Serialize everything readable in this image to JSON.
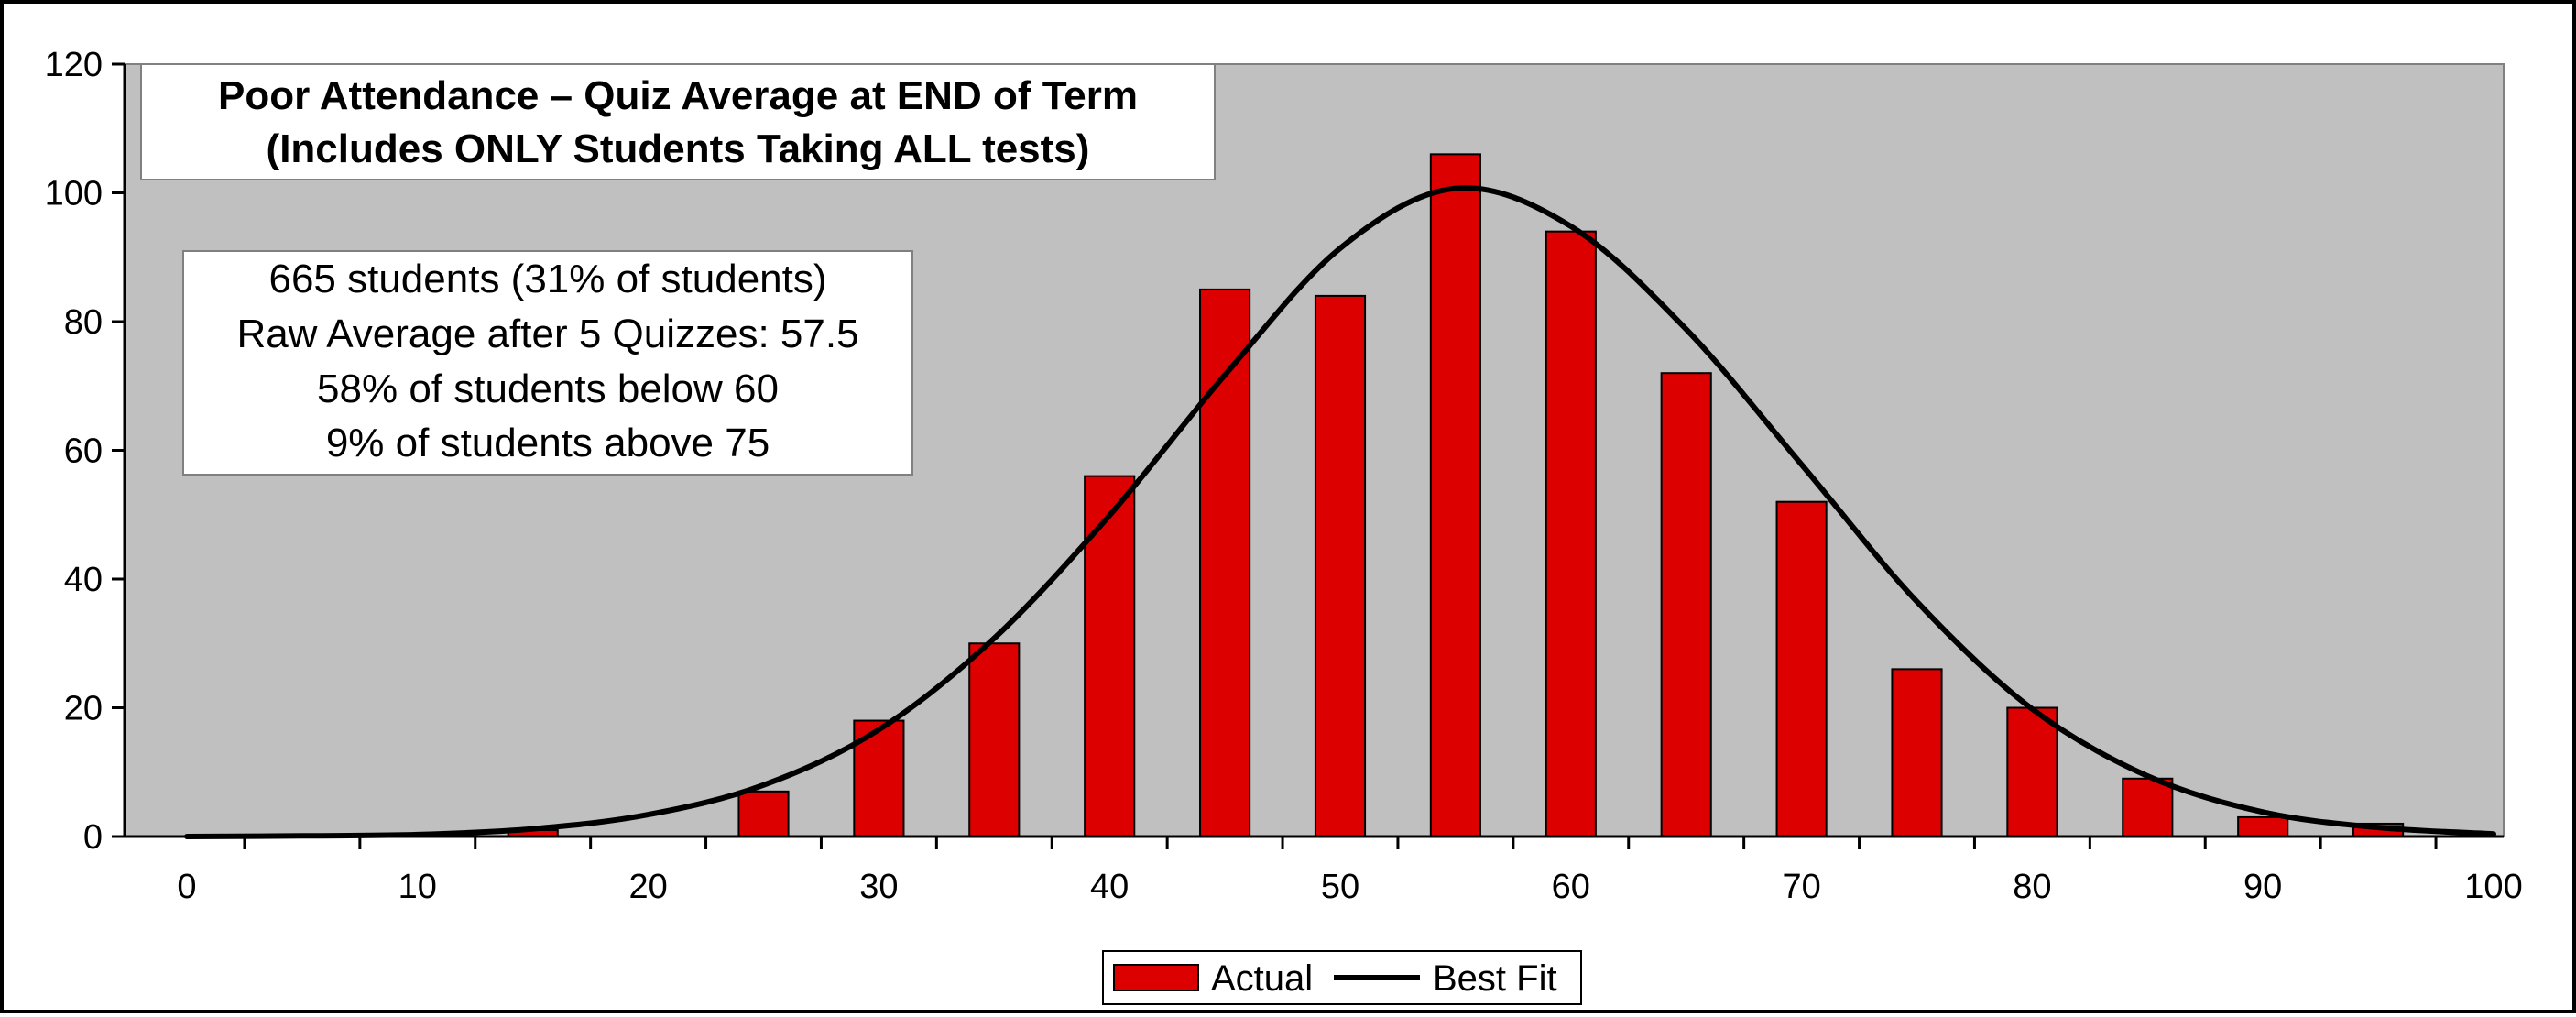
{
  "chart_data": {
    "type": "bar",
    "title": "Poor Attendance – Quiz Average at END of Term",
    "subtitle": "(Includes ONLY Students Taking ALL tests)",
    "annotations": [
      "665 students (31% of students)",
      "Raw Average after 5 Quizzes: 57.5",
      "58% of students below 60",
      "9% of students above 75"
    ],
    "xlim": [
      0,
      100
    ],
    "ylim": [
      0,
      120
    ],
    "x_ticks": [
      0,
      10,
      20,
      30,
      40,
      50,
      60,
      70,
      80,
      90,
      100
    ],
    "y_ticks": [
      0,
      20,
      40,
      60,
      80,
      100,
      120
    ],
    "grid": false,
    "legend_position": "bottom",
    "series": [
      {
        "name": "Actual",
        "type": "bar",
        "color": "#dd0000",
        "x": [
          0,
          5,
          10,
          15,
          20,
          25,
          30,
          35,
          40,
          45,
          50,
          55,
          60,
          65,
          70,
          75,
          80,
          85,
          90,
          95,
          100
        ],
        "values": [
          0,
          0,
          0,
          1,
          0,
          7,
          18,
          30,
          56,
          85,
          84,
          106,
          94,
          72,
          52,
          26,
          20,
          9,
          3,
          2,
          0
        ]
      },
      {
        "name": "Best Fit",
        "type": "line",
        "color": "#000000",
        "x": [
          0,
          5,
          10,
          15,
          20,
          25,
          30,
          35,
          40,
          45,
          50,
          55,
          60,
          65,
          70,
          75,
          80,
          85,
          90,
          95,
          100
        ],
        "values": [
          0.0,
          0.1,
          0.3,
          1.2,
          3.4,
          8.0,
          16.6,
          30.8,
          49.9,
          71.7,
          91.4,
          100.7,
          94.8,
          78.8,
          57.8,
          36.5,
          19.8,
          9.4,
          3.8,
          1.4,
          0.4
        ]
      }
    ],
    "colors": {
      "plot_background": "#c0c0c0",
      "bar_fill": "#dd0000",
      "line": "#000000"
    }
  }
}
